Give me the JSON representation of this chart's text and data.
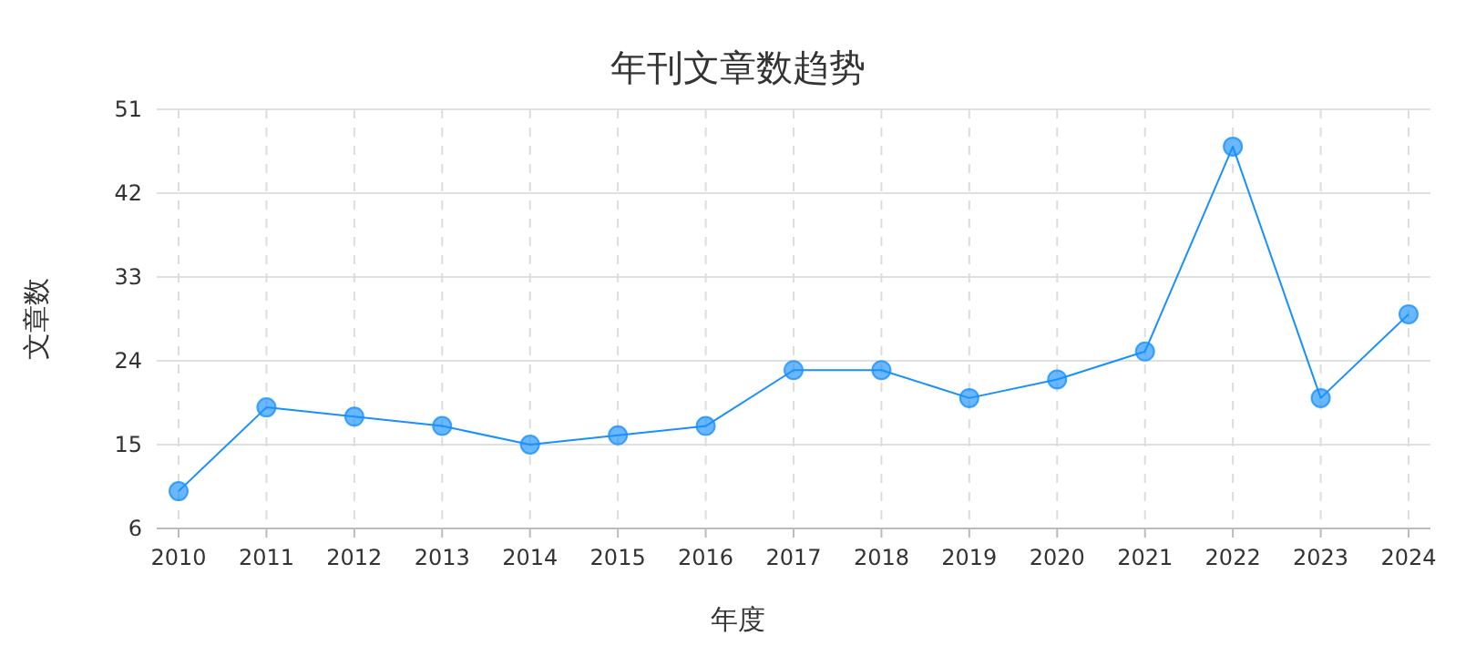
{
  "chart_data": {
    "type": "line",
    "title": "年刊文章数趋势",
    "xlabel": "年度",
    "ylabel": "文章数",
    "categories": [
      "2010",
      "2011",
      "2012",
      "2013",
      "2014",
      "2015",
      "2016",
      "2017",
      "2018",
      "2019",
      "2020",
      "2021",
      "2022",
      "2023",
      "2024"
    ],
    "series": [
      {
        "color": "#1890ff",
        "values": [
          10,
          19,
          18,
          17,
          15,
          16,
          17,
          23,
          23,
          20,
          22,
          25,
          47,
          20,
          29
        ]
      }
    ],
    "ylim": [
      6,
      51
    ],
    "yticks": [
      6,
      15,
      24,
      33,
      42,
      51
    ],
    "grid": true,
    "marker": "circle",
    "line_style": "solid"
  }
}
